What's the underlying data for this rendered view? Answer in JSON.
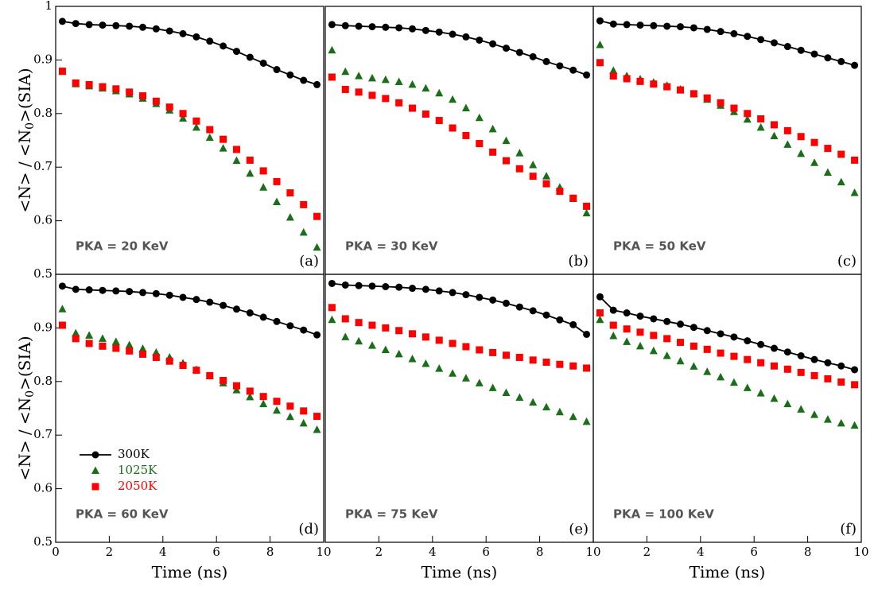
{
  "chart_data": [
    {
      "type": "line",
      "annotation": "PKA = 20 KeV",
      "label": "(a)",
      "ylabel": [
        "<N> / <N",
        "0",
        ">(SIA)"
      ],
      "xlim": [
        0,
        10
      ],
      "ylim": [
        0.5,
        1
      ],
      "yticks": [
        0.5,
        0.6,
        0.7,
        0.8,
        0.9,
        1
      ],
      "x": [
        0.25,
        0.75,
        1.25,
        1.75,
        2.25,
        2.75,
        3.25,
        3.75,
        4.25,
        4.75,
        5.25,
        5.75,
        6.25,
        6.75,
        7.25,
        7.75,
        8.25,
        8.75,
        9.25,
        9.75
      ],
      "series": [
        {
          "color": "#000000",
          "marker": "circle",
          "line": true,
          "values": [
            0.972,
            0.968,
            0.966,
            0.965,
            0.964,
            0.963,
            0.961,
            0.958,
            0.954,
            0.949,
            0.943,
            0.935,
            0.926,
            0.916,
            0.905,
            0.894,
            0.882,
            0.872,
            0.862,
            0.854
          ]
        },
        {
          "color": "#1a6e1a",
          "marker": "triangle",
          "line": false,
          "values": [
            0.878,
            0.855,
            0.851,
            0.847,
            0.842,
            0.836,
            0.828,
            0.818,
            0.806,
            0.791,
            0.774,
            0.755,
            0.735,
            0.712,
            0.688,
            0.662,
            0.635,
            0.606,
            0.578,
            0.55
          ]
        },
        {
          "color": "#ff0000",
          "marker": "square",
          "line": false,
          "values": [
            0.879,
            0.857,
            0.854,
            0.85,
            0.846,
            0.84,
            0.833,
            0.823,
            0.812,
            0.8,
            0.786,
            0.77,
            0.752,
            0.733,
            0.713,
            0.693,
            0.673,
            0.652,
            0.63,
            0.608
          ]
        }
      ]
    },
    {
      "type": "line",
      "annotation": "PKA = 30 KeV",
      "label": "(b)",
      "xlim": [
        0,
        10
      ],
      "ylim": [
        0.5,
        1
      ],
      "x": [
        0.25,
        0.75,
        1.25,
        1.75,
        2.25,
        2.75,
        3.25,
        3.75,
        4.25,
        4.75,
        5.25,
        5.75,
        6.25,
        6.75,
        7.25,
        7.75,
        8.25,
        8.75,
        9.25,
        9.75
      ],
      "series": [
        {
          "color": "#000000",
          "marker": "circle",
          "line": true,
          "values": [
            0.966,
            0.964,
            0.963,
            0.962,
            0.961,
            0.96,
            0.958,
            0.955,
            0.952,
            0.948,
            0.943,
            0.937,
            0.93,
            0.922,
            0.914,
            0.906,
            0.897,
            0.889,
            0.881,
            0.872
          ]
        },
        {
          "color": "#1a6e1a",
          "marker": "triangle",
          "line": false,
          "values": [
            0.918,
            0.878,
            0.87,
            0.866,
            0.863,
            0.859,
            0.854,
            0.847,
            0.838,
            0.826,
            0.81,
            0.792,
            0.771,
            0.749,
            0.726,
            0.704,
            0.683,
            0.662,
            0.641,
            0.614
          ]
        },
        {
          "color": "#ff0000",
          "marker": "square",
          "line": false,
          "values": [
            0.868,
            0.845,
            0.84,
            0.834,
            0.828,
            0.82,
            0.81,
            0.799,
            0.787,
            0.773,
            0.759,
            0.744,
            0.728,
            0.712,
            0.697,
            0.683,
            0.669,
            0.655,
            0.642,
            0.627
          ]
        }
      ]
    },
    {
      "type": "line",
      "annotation": "PKA = 50 KeV",
      "label": "(c)",
      "xlim": [
        0,
        10
      ],
      "ylim": [
        0.5,
        1
      ],
      "x": [
        0.25,
        0.75,
        1.25,
        1.75,
        2.25,
        2.75,
        3.25,
        3.75,
        4.25,
        4.75,
        5.25,
        5.75,
        6.25,
        6.75,
        7.25,
        7.75,
        8.25,
        8.75,
        9.25,
        9.75
      ],
      "series": [
        {
          "color": "#000000",
          "marker": "circle",
          "line": true,
          "values": [
            0.973,
            0.967,
            0.966,
            0.965,
            0.964,
            0.963,
            0.962,
            0.96,
            0.957,
            0.953,
            0.949,
            0.944,
            0.938,
            0.932,
            0.925,
            0.918,
            0.911,
            0.904,
            0.897,
            0.89
          ]
        },
        {
          "color": "#1a6e1a",
          "marker": "triangle",
          "line": false,
          "values": [
            0.928,
            0.88,
            0.87,
            0.864,
            0.858,
            0.852,
            0.845,
            0.836,
            0.826,
            0.815,
            0.803,
            0.789,
            0.774,
            0.758,
            0.742,
            0.725,
            0.708,
            0.69,
            0.672,
            0.652
          ]
        },
        {
          "color": "#ff0000",
          "marker": "square",
          "line": false,
          "values": [
            0.895,
            0.87,
            0.865,
            0.86,
            0.855,
            0.85,
            0.844,
            0.837,
            0.829,
            0.82,
            0.81,
            0.8,
            0.79,
            0.779,
            0.768,
            0.757,
            0.746,
            0.735,
            0.724,
            0.713
          ]
        }
      ]
    },
    {
      "type": "line",
      "annotation": "PKA = 60 KeV",
      "label": "(d)",
      "ylabel": [
        "<N> / <N",
        "0",
        ">(SIA)"
      ],
      "xlabel": "Time (ns)",
      "legend": "lower left",
      "xlim": [
        0,
        10
      ],
      "ylim": [
        0.5,
        1
      ],
      "xticks": [
        0,
        2,
        4,
        6,
        8,
        10
      ],
      "yticks": [
        0.5,
        0.6,
        0.7,
        0.8,
        0.9
      ],
      "x": [
        0.25,
        0.75,
        1.25,
        1.75,
        2.25,
        2.75,
        3.25,
        3.75,
        4.25,
        4.75,
        5.25,
        5.75,
        6.25,
        6.75,
        7.25,
        7.75,
        8.25,
        8.75,
        9.25,
        9.75
      ],
      "series": [
        {
          "name": "300K",
          "color": "#000000",
          "marker": "circle",
          "line": true,
          "values": [
            0.978,
            0.972,
            0.971,
            0.97,
            0.969,
            0.968,
            0.966,
            0.964,
            0.961,
            0.957,
            0.953,
            0.948,
            0.942,
            0.935,
            0.928,
            0.92,
            0.912,
            0.904,
            0.896,
            0.887
          ]
        },
        {
          "name": "1025K",
          "color": "#1a6e1a",
          "marker": "triangle",
          "line": false,
          "values": [
            0.935,
            0.89,
            0.886,
            0.88,
            0.874,
            0.868,
            0.861,
            0.854,
            0.845,
            0.834,
            0.822,
            0.81,
            0.797,
            0.784,
            0.771,
            0.758,
            0.746,
            0.734,
            0.722,
            0.71
          ]
        },
        {
          "name": "2050K",
          "color": "#ff0000",
          "marker": "square",
          "line": false,
          "values": [
            0.905,
            0.88,
            0.871,
            0.866,
            0.862,
            0.857,
            0.851,
            0.845,
            0.838,
            0.83,
            0.821,
            0.811,
            0.802,
            0.792,
            0.782,
            0.772,
            0.763,
            0.754,
            0.745,
            0.735
          ]
        }
      ]
    },
    {
      "type": "line",
      "annotation": "PKA = 75 KeV",
      "label": "(e)",
      "xlabel": "Time (ns)",
      "xlim": [
        0,
        10
      ],
      "ylim": [
        0.5,
        1
      ],
      "xticks": [
        2,
        4,
        6,
        8,
        10
      ],
      "x": [
        0.25,
        0.75,
        1.25,
        1.75,
        2.25,
        2.75,
        3.25,
        3.75,
        4.25,
        4.75,
        5.25,
        5.75,
        6.25,
        6.75,
        7.25,
        7.75,
        8.25,
        8.75,
        9.25,
        9.75
      ],
      "series": [
        {
          "color": "#000000",
          "marker": "circle",
          "line": true,
          "values": [
            0.983,
            0.98,
            0.979,
            0.978,
            0.977,
            0.976,
            0.974,
            0.972,
            0.969,
            0.966,
            0.962,
            0.957,
            0.952,
            0.946,
            0.939,
            0.932,
            0.924,
            0.915,
            0.906,
            0.888
          ]
        },
        {
          "color": "#1a6e1a",
          "marker": "triangle",
          "line": false,
          "values": [
            0.915,
            0.883,
            0.875,
            0.867,
            0.859,
            0.851,
            0.842,
            0.833,
            0.824,
            0.815,
            0.806,
            0.797,
            0.788,
            0.779,
            0.77,
            0.761,
            0.752,
            0.743,
            0.734,
            0.725
          ]
        },
        {
          "color": "#ff0000",
          "marker": "square",
          "line": false,
          "values": [
            0.938,
            0.917,
            0.91,
            0.905,
            0.9,
            0.895,
            0.889,
            0.883,
            0.877,
            0.871,
            0.865,
            0.859,
            0.854,
            0.849,
            0.845,
            0.84,
            0.836,
            0.832,
            0.829,
            0.825
          ]
        }
      ]
    },
    {
      "type": "line",
      "annotation": "PKA = 100 KeV",
      "label": "(f)",
      "xlabel": "Time (ns)",
      "xlim": [
        0,
        10
      ],
      "ylim": [
        0.5,
        1
      ],
      "xticks": [
        2,
        4,
        6,
        8,
        10
      ],
      "x": [
        0.25,
        0.75,
        1.25,
        1.75,
        2.25,
        2.75,
        3.25,
        3.75,
        4.25,
        4.75,
        5.25,
        5.75,
        6.25,
        6.75,
        7.25,
        7.75,
        8.25,
        8.75,
        9.25,
        9.75
      ],
      "series": [
        {
          "color": "#000000",
          "marker": "circle",
          "line": true,
          "values": [
            0.958,
            0.933,
            0.928,
            0.922,
            0.917,
            0.912,
            0.907,
            0.901,
            0.895,
            0.889,
            0.883,
            0.876,
            0.869,
            0.862,
            0.855,
            0.848,
            0.841,
            0.835,
            0.829,
            0.822
          ]
        },
        {
          "color": "#1a6e1a",
          "marker": "triangle",
          "line": false,
          "values": [
            0.915,
            0.885,
            0.874,
            0.866,
            0.857,
            0.848,
            0.838,
            0.828,
            0.818,
            0.808,
            0.798,
            0.788,
            0.778,
            0.768,
            0.758,
            0.748,
            0.738,
            0.729,
            0.722,
            0.718
          ]
        },
        {
          "color": "#ff0000",
          "marker": "square",
          "line": false,
          "values": [
            0.928,
            0.905,
            0.898,
            0.892,
            0.886,
            0.88,
            0.873,
            0.866,
            0.86,
            0.853,
            0.847,
            0.841,
            0.835,
            0.829,
            0.823,
            0.817,
            0.811,
            0.805,
            0.799,
            0.794
          ]
        }
      ]
    }
  ]
}
